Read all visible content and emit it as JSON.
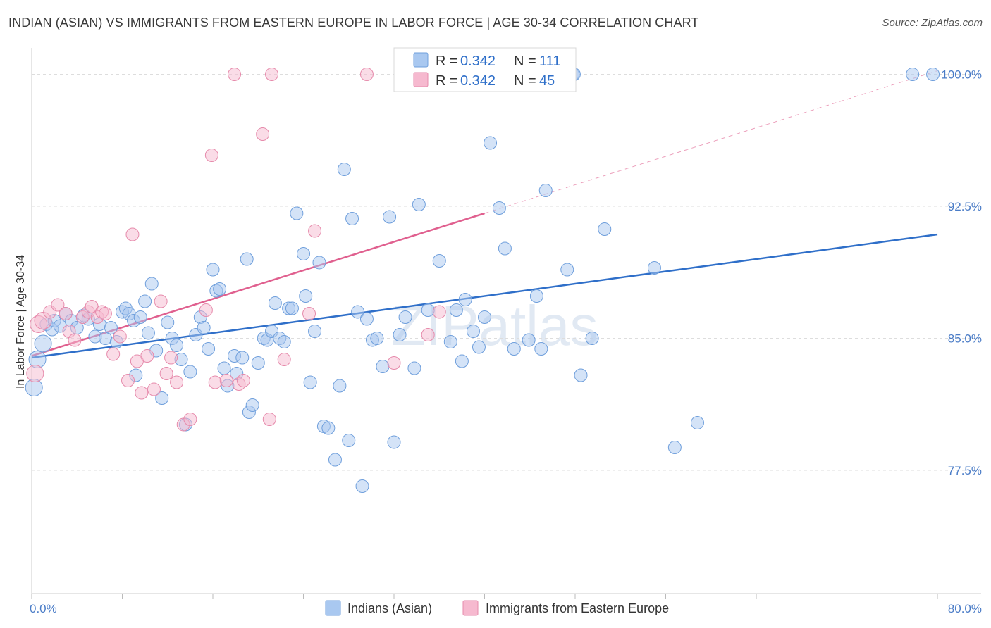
{
  "title": "INDIAN (ASIAN) VS IMMIGRANTS FROM EASTERN EUROPE IN LABOR FORCE | AGE 30-34 CORRELATION CHART",
  "source": "Source: ZipAtlas.com",
  "watermark": "ZIPatlas",
  "chart_data": {
    "type": "scatter",
    "xlabel": "",
    "ylabel": "In Labor Force | Age 30-34",
    "xlim": [
      0,
      80
    ],
    "ylim": [
      70.5,
      101.5
    ],
    "x_tick_labels": [
      "0.0%",
      "80.0%"
    ],
    "y_ticks": [
      77.5,
      85.0,
      92.5,
      100.0
    ],
    "y_tick_labels": [
      "77.5%",
      "85.0%",
      "92.5%",
      "100.0%"
    ],
    "grid": true,
    "legend_position": "top-center",
    "stats": [
      {
        "r_label": "R = ",
        "r_value": "0.342",
        "n_label": "N = ",
        "n_value": "111",
        "color": "#a9c8f0"
      },
      {
        "r_label": "R = ",
        "r_value": "0.342",
        "n_label": "N = ",
        "n_value": "45",
        "color": "#f6b9cf"
      }
    ],
    "series": [
      {
        "name": "Indians (Asian)",
        "color": "#a9c8f0",
        "stroke": "#6f9fdc",
        "trend_color": "#2f6fc9",
        "trend": {
          "x": [
            0,
            80
          ],
          "y": [
            83.9,
            90.9
          ]
        },
        "points": [
          [
            0.2,
            82.2
          ],
          [
            0.5,
            83.8
          ],
          [
            1.0,
            84.7
          ],
          [
            1.3,
            85.8
          ],
          [
            1.8,
            85.5
          ],
          [
            2.0,
            86.0
          ],
          [
            2.5,
            85.7
          ],
          [
            3.0,
            86.4
          ],
          [
            3.5,
            86.0
          ],
          [
            4.0,
            85.6
          ],
          [
            4.6,
            86.3
          ],
          [
            5.0,
            86.1
          ],
          [
            5.6,
            85.1
          ],
          [
            6.0,
            85.8
          ],
          [
            6.5,
            85.0
          ],
          [
            7.0,
            85.6
          ],
          [
            7.5,
            84.8
          ],
          [
            8.0,
            86.5
          ],
          [
            8.3,
            86.7
          ],
          [
            8.6,
            86.4
          ],
          [
            9.0,
            86.0
          ],
          [
            9.2,
            82.9
          ],
          [
            9.6,
            86.2
          ],
          [
            10.0,
            87.1
          ],
          [
            10.3,
            85.3
          ],
          [
            10.6,
            88.1
          ],
          [
            11.0,
            84.3
          ],
          [
            11.5,
            81.6
          ],
          [
            12.0,
            85.9
          ],
          [
            12.4,
            85.0
          ],
          [
            12.8,
            84.6
          ],
          [
            13.2,
            83.8
          ],
          [
            13.6,
            80.1
          ],
          [
            14.0,
            83.1
          ],
          [
            14.5,
            85.2
          ],
          [
            14.9,
            86.2
          ],
          [
            15.2,
            85.6
          ],
          [
            15.6,
            84.4
          ],
          [
            16.0,
            88.9
          ],
          [
            16.3,
            87.7
          ],
          [
            16.6,
            87.8
          ],
          [
            17.0,
            83.3
          ],
          [
            17.3,
            82.3
          ],
          [
            17.9,
            84.0
          ],
          [
            18.1,
            83.0
          ],
          [
            18.6,
            83.9
          ],
          [
            19.0,
            89.5
          ],
          [
            19.2,
            80.8
          ],
          [
            19.5,
            81.2
          ],
          [
            20.0,
            83.6
          ],
          [
            20.5,
            85.0
          ],
          [
            20.8,
            84.9
          ],
          [
            21.2,
            85.4
          ],
          [
            21.5,
            87.0
          ],
          [
            21.9,
            85.0
          ],
          [
            22.3,
            84.8
          ],
          [
            22.7,
            86.7
          ],
          [
            23.0,
            86.7
          ],
          [
            23.4,
            92.1
          ],
          [
            24.0,
            89.8
          ],
          [
            24.2,
            87.4
          ],
          [
            24.6,
            82.5
          ],
          [
            25.0,
            85.4
          ],
          [
            25.4,
            89.3
          ],
          [
            25.8,
            80.0
          ],
          [
            26.2,
            79.9
          ],
          [
            26.8,
            78.1
          ],
          [
            27.2,
            82.3
          ],
          [
            27.6,
            94.6
          ],
          [
            28.0,
            79.2
          ],
          [
            28.3,
            91.8
          ],
          [
            28.8,
            86.5
          ],
          [
            29.2,
            76.6
          ],
          [
            29.6,
            86.1
          ],
          [
            30.1,
            84.9
          ],
          [
            30.5,
            85.0
          ],
          [
            31.0,
            83.4
          ],
          [
            31.6,
            91.9
          ],
          [
            32.0,
            79.1
          ],
          [
            32.5,
            85.2
          ],
          [
            33.0,
            86.2
          ],
          [
            33.8,
            83.3
          ],
          [
            34.2,
            92.6
          ],
          [
            35.0,
            86.6
          ],
          [
            36.0,
            89.4
          ],
          [
            37.0,
            84.8
          ],
          [
            37.5,
            86.6
          ],
          [
            38.0,
            83.7
          ],
          [
            38.3,
            87.2
          ],
          [
            39.0,
            85.4
          ],
          [
            39.5,
            84.5
          ],
          [
            40.0,
            86.2
          ],
          [
            40.5,
            96.1
          ],
          [
            41.3,
            92.4
          ],
          [
            41.8,
            90.1
          ],
          [
            42.6,
            84.4
          ],
          [
            43.9,
            84.9
          ],
          [
            44.6,
            87.4
          ],
          [
            45.0,
            84.4
          ],
          [
            45.4,
            93.4
          ],
          [
            47.3,
            88.9
          ],
          [
            47.8,
            100.0
          ],
          [
            47.9,
            100.0
          ],
          [
            48.5,
            82.9
          ],
          [
            49.5,
            85.0
          ],
          [
            50.6,
            91.2
          ],
          [
            55.0,
            89.0
          ],
          [
            56.8,
            78.8
          ],
          [
            58.8,
            80.2
          ],
          [
            77.8,
            100.0
          ],
          [
            79.6,
            100.0
          ]
        ]
      },
      {
        "name": "Immigrants from Eastern Europe",
        "color": "#f6b9cf",
        "stroke": "#e68aab",
        "trend_color": "#e0608f",
        "trend": {
          "x": [
            0,
            40
          ],
          "y": [
            84.0,
            92.1
          ]
        },
        "trend_extension": {
          "x": [
            40,
            80
          ],
          "y": [
            92.1,
            100.2
          ]
        },
        "points": [
          [
            0.3,
            83.0
          ],
          [
            0.6,
            85.8
          ],
          [
            1.0,
            86.0
          ],
          [
            1.6,
            86.5
          ],
          [
            2.3,
            86.9
          ],
          [
            3.0,
            86.4
          ],
          [
            3.3,
            85.4
          ],
          [
            3.8,
            84.9
          ],
          [
            4.5,
            86.2
          ],
          [
            5.0,
            86.5
          ],
          [
            5.3,
            86.8
          ],
          [
            5.8,
            86.2
          ],
          [
            6.2,
            86.5
          ],
          [
            6.5,
            86.4
          ],
          [
            7.2,
            84.1
          ],
          [
            7.8,
            85.1
          ],
          [
            8.5,
            82.6
          ],
          [
            8.9,
            90.9
          ],
          [
            9.3,
            83.7
          ],
          [
            9.7,
            81.9
          ],
          [
            10.2,
            84.0
          ],
          [
            10.8,
            82.1
          ],
          [
            11.4,
            87.1
          ],
          [
            11.9,
            83.0
          ],
          [
            12.3,
            83.9
          ],
          [
            12.8,
            82.5
          ],
          [
            13.4,
            80.1
          ],
          [
            14.0,
            80.4
          ],
          [
            15.4,
            86.6
          ],
          [
            15.9,
            95.4
          ],
          [
            16.2,
            82.5
          ],
          [
            17.2,
            82.6
          ],
          [
            17.9,
            100.0
          ],
          [
            18.3,
            82.4
          ],
          [
            18.7,
            82.6
          ],
          [
            20.4,
            96.6
          ],
          [
            21.0,
            80.4
          ],
          [
            21.2,
            100.0
          ],
          [
            22.3,
            83.8
          ],
          [
            24.5,
            86.4
          ],
          [
            25.0,
            91.1
          ],
          [
            29.6,
            100.0
          ],
          [
            32.0,
            83.6
          ],
          [
            35.0,
            85.2
          ],
          [
            36.0,
            86.5
          ]
        ]
      }
    ]
  }
}
